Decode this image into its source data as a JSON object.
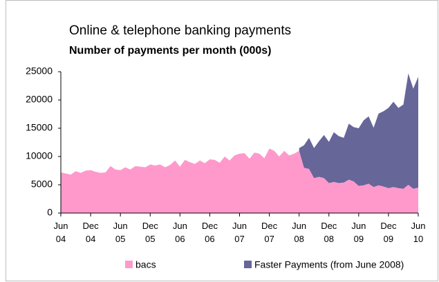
{
  "chart_data": {
    "type": "stacked_area",
    "title": "Online & telephone banking payments",
    "subtitle": "Number of payments per month (000s)",
    "categories": [
      "Jun\n04",
      null,
      null,
      null,
      null,
      null,
      "Dec\n04",
      null,
      null,
      null,
      null,
      null,
      "Jun\n05",
      null,
      null,
      null,
      null,
      null,
      "Dec\n05",
      null,
      null,
      null,
      null,
      null,
      "Jun\n06",
      null,
      null,
      null,
      null,
      null,
      "Dec\n06",
      null,
      null,
      null,
      null,
      null,
      "Jun\n07",
      null,
      null,
      null,
      null,
      null,
      "Dec\n07",
      null,
      null,
      null,
      null,
      null,
      "Jun\n08",
      null,
      null,
      null,
      null,
      null,
      "Dec\n08",
      null,
      null,
      null,
      null,
      null,
      "Jun\n09",
      null,
      null,
      null,
      null,
      null,
      "Dec\n09",
      null,
      null,
      null,
      null,
      null,
      "Jun\n10"
    ],
    "series": [
      {
        "name": "bacs",
        "color": "#ff99cc",
        "values": [
          7200,
          7000,
          6800,
          7400,
          7100,
          7500,
          7600,
          7300,
          7100,
          7200,
          8300,
          7700,
          7600,
          8100,
          7700,
          8300,
          8200,
          8100,
          8600,
          8400,
          8600,
          8100,
          8500,
          9300,
          8200,
          9400,
          9000,
          8700,
          9300,
          8800,
          9500,
          9400,
          8900,
          10000,
          9300,
          10200,
          10500,
          10600,
          9600,
          10700,
          10500,
          9700,
          11400,
          11000,
          10000,
          11000,
          10200,
          10500,
          11000,
          8000,
          7800,
          6200,
          6400,
          6200,
          5300,
          5500,
          5300,
          5400,
          5900,
          5600,
          4800,
          4900,
          5200,
          4600,
          4900,
          4700,
          4400,
          4600,
          4400,
          4300,
          5000,
          4300,
          4500
        ]
      },
      {
        "name": "Faster Payments (from June 2008)",
        "color": "#666699",
        "values": [
          null,
          null,
          null,
          null,
          null,
          null,
          null,
          null,
          null,
          null,
          null,
          null,
          null,
          null,
          null,
          null,
          null,
          null,
          null,
          null,
          null,
          null,
          null,
          null,
          null,
          null,
          null,
          null,
          null,
          null,
          null,
          null,
          null,
          null,
          null,
          null,
          null,
          null,
          null,
          null,
          null,
          null,
          null,
          null,
          null,
          null,
          null,
          null,
          500,
          4000,
          5500,
          5300,
          6300,
          7600,
          7300,
          8800,
          8300,
          7900,
          9900,
          9600,
          10200,
          11500,
          11900,
          10500,
          12700,
          13300,
          14200,
          15100,
          14200,
          14900,
          19700,
          17700,
          19600
        ]
      }
    ],
    "ylim": [
      0,
      25000
    ],
    "yticks": [
      0,
      5000,
      10000,
      15000,
      20000,
      25000
    ],
    "legend": "bottom"
  }
}
